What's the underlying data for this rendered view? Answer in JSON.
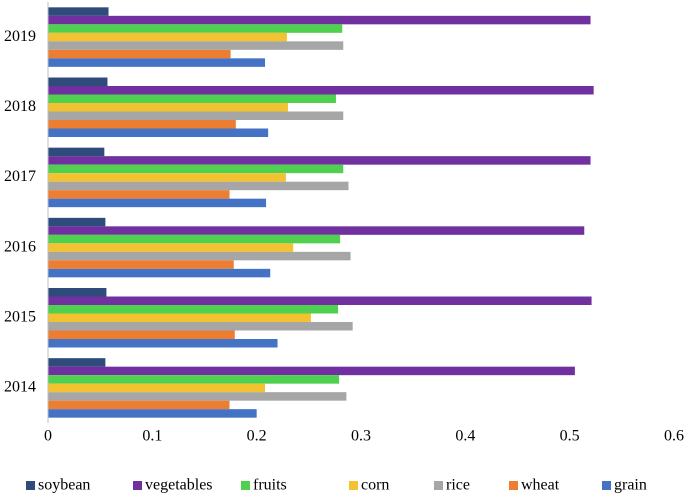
{
  "chart_data": {
    "type": "hbar",
    "categories": [
      "2019",
      "2018",
      "2017",
      "2016",
      "2015",
      "2014"
    ],
    "series": [
      {
        "name": "soybean",
        "color": "#2f4b7c",
        "values": [
          0.058,
          0.057,
          0.054,
          0.055,
          0.056,
          0.055
        ]
      },
      {
        "name": "vegetables",
        "color": "#7030a0",
        "values": [
          0.52,
          0.523,
          0.52,
          0.514,
          0.521,
          0.505
        ]
      },
      {
        "name": "fruits",
        "color": "#4fd04f",
        "values": [
          0.282,
          0.276,
          0.283,
          0.28,
          0.278,
          0.279
        ]
      },
      {
        "name": "corn",
        "color": "#f2c230",
        "values": [
          0.229,
          0.23,
          0.228,
          0.235,
          0.252,
          0.208
        ]
      },
      {
        "name": "rice",
        "color": "#a6a6a6",
        "values": [
          0.283,
          0.283,
          0.288,
          0.29,
          0.292,
          0.286
        ]
      },
      {
        "name": "wheat",
        "color": "#ed7d31",
        "values": [
          0.175,
          0.18,
          0.174,
          0.178,
          0.179,
          0.174
        ]
      },
      {
        "name": "grain",
        "color": "#4472c4",
        "values": [
          0.208,
          0.211,
          0.209,
          0.213,
          0.22,
          0.2
        ]
      }
    ],
    "xlim": [
      0,
      0.6
    ],
    "xticks": [
      0,
      0.1,
      0.2,
      0.3,
      0.4,
      0.5,
      0.6
    ],
    "legend": "bottom"
  }
}
